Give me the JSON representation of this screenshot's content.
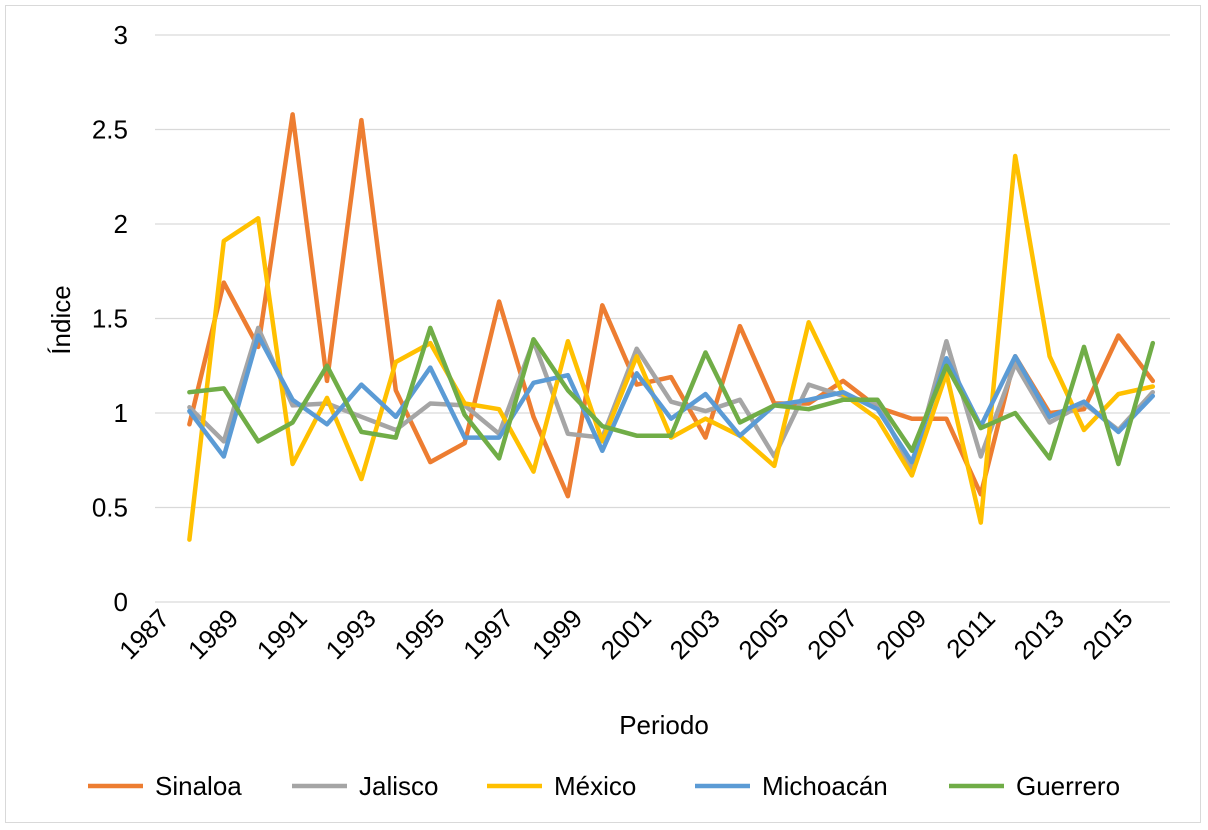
{
  "chart_data": {
    "type": "line",
    "title": "",
    "xlabel": "Periodo",
    "ylabel": "Índice",
    "ylim": [
      0,
      3
    ],
    "yticks": [
      "0",
      "0.5",
      "1",
      "1.5",
      "2",
      "2.5",
      "3"
    ],
    "xticks": [
      "1987",
      "1989",
      "1991",
      "1993",
      "1995",
      "1997",
      "1999",
      "2001",
      "2003",
      "2005",
      "2007",
      "2009",
      "2011",
      "2013",
      "2015"
    ],
    "x": [
      1988,
      1989,
      1990,
      1991,
      1992,
      1993,
      1994,
      1995,
      1996,
      1997,
      1998,
      1999,
      2000,
      2001,
      2002,
      2003,
      2004,
      2005,
      2006,
      2007,
      2008,
      2009,
      2010,
      2011,
      2012,
      2013,
      2014,
      2015,
      2016
    ],
    "grid": true,
    "legend_position": "bottom",
    "series": [
      {
        "name": "Sinaloa",
        "color": "#ED7D31",
        "values": [
          0.94,
          1.69,
          1.35,
          2.58,
          1.17,
          2.55,
          1.12,
          0.74,
          0.84,
          1.59,
          0.98,
          0.56,
          1.57,
          1.15,
          1.19,
          0.87,
          1.46,
          1.05,
          1.05,
          1.17,
          1.03,
          0.97,
          0.97,
          0.57,
          1.3,
          1.0,
          1.02,
          1.41,
          1.17
        ]
      },
      {
        "name": "Jalisco",
        "color": "#A5A5A5",
        "values": [
          1.03,
          0.85,
          1.45,
          1.04,
          1.05,
          0.98,
          0.91,
          1.05,
          1.04,
          0.89,
          1.38,
          0.89,
          0.87,
          1.34,
          1.06,
          1.01,
          1.07,
          0.77,
          1.15,
          1.09,
          1.05,
          0.7,
          1.38,
          0.77,
          1.26,
          0.95,
          1.05,
          0.91,
          1.11
        ]
      },
      {
        "name": "México",
        "color": "#FFC000",
        "values": [
          0.33,
          1.91,
          2.03,
          0.73,
          1.08,
          0.65,
          1.27,
          1.37,
          1.05,
          1.02,
          0.69,
          1.38,
          0.85,
          1.3,
          0.87,
          0.97,
          0.88,
          0.72,
          1.48,
          1.1,
          0.97,
          0.67,
          1.21,
          0.42,
          2.36,
          1.3,
          0.91,
          1.1,
          1.14
        ]
      },
      {
        "name": "Michoacán",
        "color": "#5B9BD5",
        "values": [
          1.01,
          0.77,
          1.41,
          1.07,
          0.94,
          1.15,
          0.98,
          1.24,
          0.87,
          0.87,
          1.16,
          1.2,
          0.8,
          1.21,
          0.97,
          1.1,
          0.88,
          1.04,
          1.07,
          1.11,
          1.02,
          0.74,
          1.29,
          0.93,
          1.3,
          0.98,
          1.06,
          0.9,
          1.09
        ]
      },
      {
        "name": "Guerrero",
        "color": "#70AD47",
        "values": [
          1.11,
          1.13,
          0.85,
          0.95,
          1.25,
          0.9,
          0.87,
          1.45,
          0.99,
          0.76,
          1.39,
          1.12,
          0.93,
          0.88,
          0.88,
          1.32,
          0.95,
          1.04,
          1.02,
          1.07,
          1.07,
          0.8,
          1.25,
          0.92,
          1.0,
          0.76,
          1.35,
          0.73,
          1.37
        ]
      }
    ]
  }
}
